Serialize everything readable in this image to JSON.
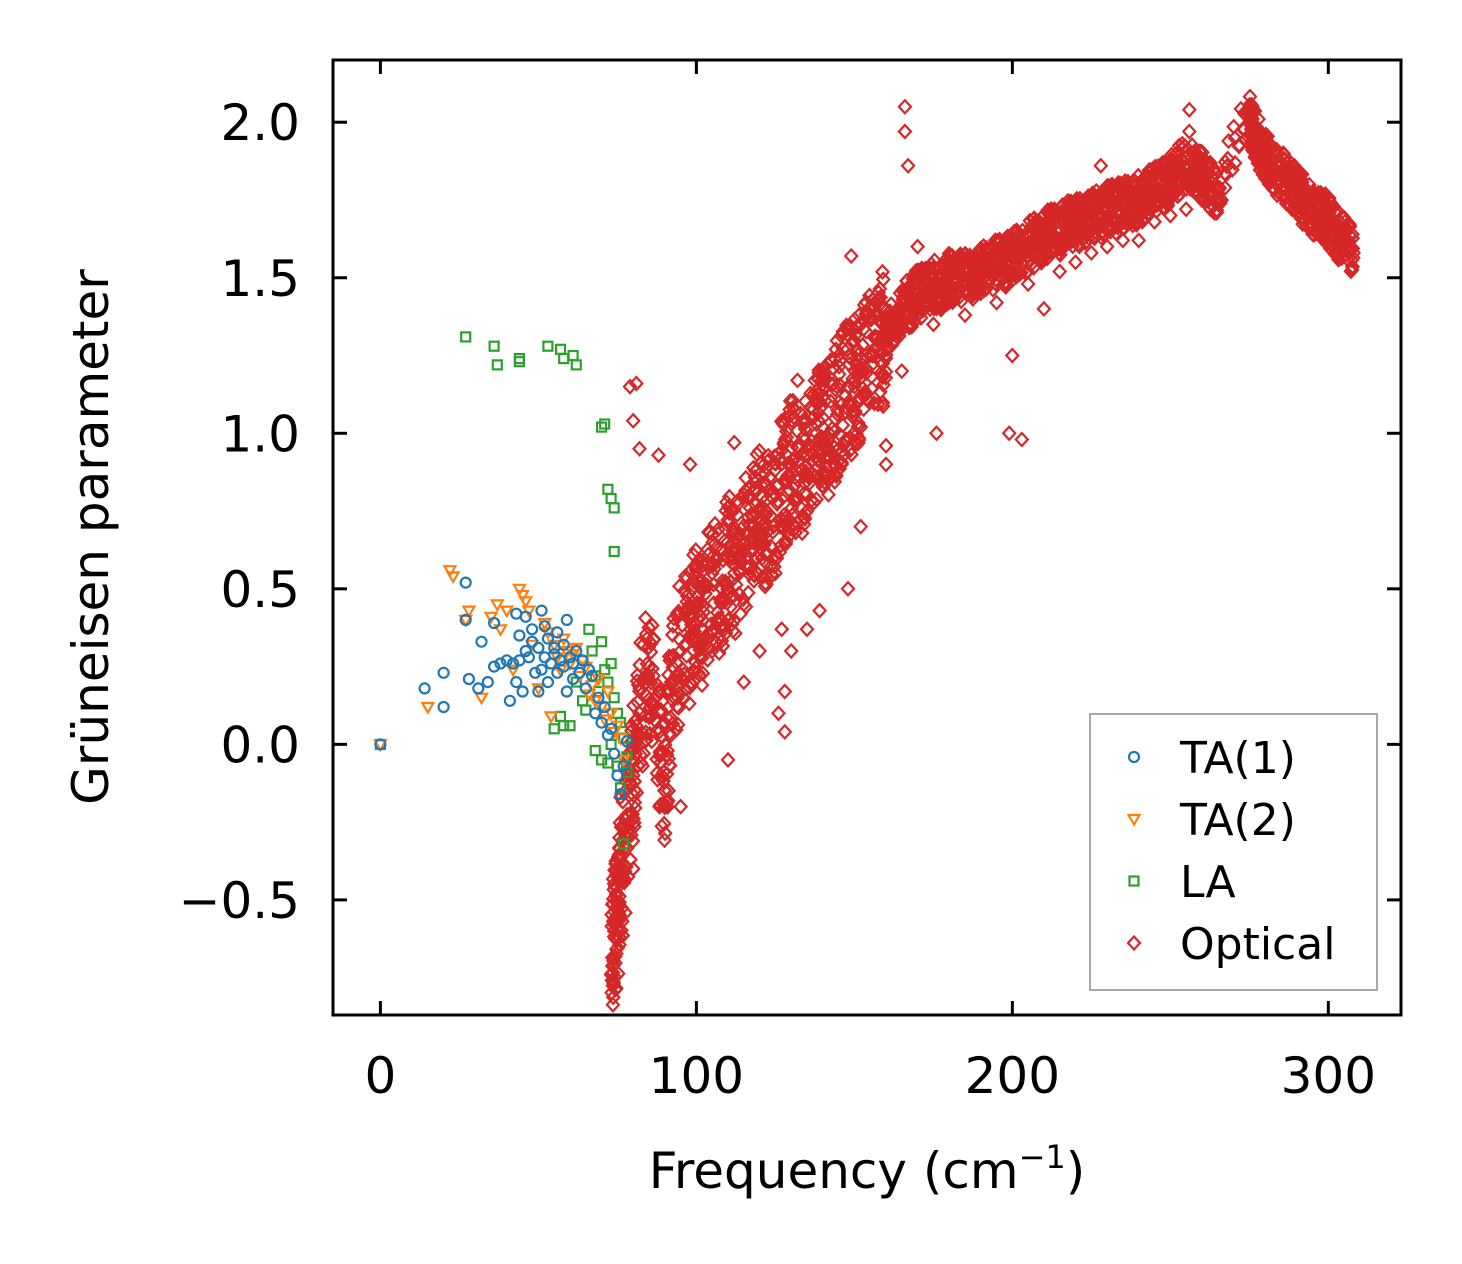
{
  "chart_data": {
    "type": "scatter",
    "title": "",
    "xlabel": "Frequency (cm",
    "xlabel_sup": "−1",
    "xlabel_close": ")",
    "ylabel": "Grüneisen parameter",
    "xlim": [
      -15,
      323
    ],
    "ylim": [
      -0.87,
      2.2
    ],
    "x_ticks": [
      0,
      100,
      200,
      300
    ],
    "x_tick_labels": [
      "0",
      "100",
      "200",
      "300"
    ],
    "y_ticks": [
      -0.5,
      0.0,
      0.5,
      1.0,
      1.5,
      2.0
    ],
    "y_tick_labels": [
      "−0.5",
      "0.0",
      "0.5",
      "1.0",
      "1.5",
      "2.0"
    ],
    "grid": false,
    "legend_position": "bottom-right",
    "series": [
      {
        "name": "TA(1)",
        "marker": "circle",
        "color": "#1f77b4",
        "points": [
          [
            0,
            0
          ],
          [
            14,
            0.18
          ],
          [
            20,
            0.12
          ],
          [
            20,
            0.23
          ],
          [
            27,
            0.4
          ],
          [
            27,
            0.52
          ],
          [
            28,
            0.21
          ],
          [
            31,
            0.18
          ],
          [
            32,
            0.33
          ],
          [
            34,
            0.2
          ],
          [
            36,
            0.25
          ],
          [
            36,
            0.39
          ],
          [
            38,
            0.26
          ],
          [
            40,
            0.27
          ],
          [
            41,
            0.14
          ],
          [
            42,
            0.26
          ],
          [
            43,
            0.42
          ],
          [
            43,
            0.2
          ],
          [
            44,
            0.27
          ],
          [
            44,
            0.35
          ],
          [
            45,
            0.17
          ],
          [
            46,
            0.3
          ],
          [
            46,
            0.41
          ],
          [
            47,
            0.28
          ],
          [
            48,
            0.37
          ],
          [
            48,
            0.33
          ],
          [
            49,
            0.23
          ],
          [
            50,
            0.31
          ],
          [
            50,
            0.17
          ],
          [
            51,
            0.24
          ],
          [
            51,
            0.43
          ],
          [
            52,
            0.28
          ],
          [
            52,
            0.38
          ],
          [
            53,
            0.34
          ],
          [
            53,
            0.2
          ],
          [
            54,
            0.26
          ],
          [
            55,
            0.29
          ],
          [
            55,
            0.31
          ],
          [
            56,
            0.36
          ],
          [
            56,
            0.23
          ],
          [
            57,
            0.27
          ],
          [
            58,
            0.25
          ],
          [
            58,
            0.32
          ],
          [
            59,
            0.4
          ],
          [
            59,
            0.17
          ],
          [
            60,
            0.28
          ],
          [
            61,
            0.26
          ],
          [
            61,
            0.21
          ],
          [
            62,
            0.3
          ],
          [
            63,
            0.23
          ],
          [
            64,
            0.27
          ],
          [
            65,
            0.18
          ],
          [
            66,
            0.24
          ],
          [
            67,
            0.22
          ],
          [
            68,
            0.1
          ],
          [
            69,
            0.15
          ],
          [
            70,
            0.07
          ],
          [
            71,
            0.12
          ],
          [
            72,
            0.03
          ],
          [
            73,
            0.05
          ],
          [
            74,
            -0.03
          ],
          [
            75,
            -0.1
          ],
          [
            76,
            -0.16
          ],
          [
            77,
            -0.07
          ],
          [
            78,
            0.01
          ]
        ]
      },
      {
        "name": "TA(2)",
        "marker": "triangle-down",
        "color": "#ff7f0e",
        "points": [
          [
            0,
            0
          ],
          [
            15,
            0.12
          ],
          [
            22,
            0.56
          ],
          [
            23,
            0.54
          ],
          [
            27,
            0.4
          ],
          [
            28,
            0.43
          ],
          [
            32,
            0.15
          ],
          [
            35,
            0.41
          ],
          [
            37,
            0.45
          ],
          [
            38,
            0.37
          ],
          [
            40,
            0.43
          ],
          [
            42,
            0.24
          ],
          [
            44,
            0.5
          ],
          [
            45,
            0.48
          ],
          [
            46,
            0.46
          ],
          [
            47,
            0.43
          ],
          [
            48,
            0.32
          ],
          [
            50,
            0.18
          ],
          [
            52,
            0.39
          ],
          [
            53,
            0.36
          ],
          [
            54,
            0.09
          ],
          [
            55,
            0.32
          ],
          [
            56,
            0.28
          ],
          [
            57,
            0.24
          ],
          [
            58,
            0.34
          ],
          [
            59,
            0.3
          ],
          [
            60,
            0.26
          ],
          [
            61,
            0.29
          ],
          [
            62,
            0.31
          ],
          [
            63,
            0.22
          ],
          [
            64,
            0.27
          ],
          [
            65,
            0.25
          ],
          [
            66,
            0.16
          ],
          [
            67,
            0.19
          ],
          [
            68,
            0.14
          ],
          [
            69,
            0.21
          ],
          [
            70,
            0.12
          ],
          [
            71,
            0.08
          ],
          [
            72,
            0.17
          ],
          [
            73,
            0.1
          ],
          [
            74,
            0.04
          ],
          [
            75,
            0.06
          ],
          [
            76,
            0.02
          ],
          [
            77,
            -0.05
          ]
        ]
      },
      {
        "name": "LA",
        "marker": "square",
        "color": "#2ca02c",
        "points": [
          [
            0,
            0
          ],
          [
            27,
            1.31
          ],
          [
            36,
            1.28
          ],
          [
            37,
            1.22
          ],
          [
            44,
            1.23
          ],
          [
            44,
            1.24
          ],
          [
            53,
            1.28
          ],
          [
            57,
            1.27
          ],
          [
            58,
            1.24
          ],
          [
            61,
            1.25
          ],
          [
            62,
            1.22
          ],
          [
            70,
            1.02
          ],
          [
            71,
            1.03
          ],
          [
            72,
            0.82
          ],
          [
            73,
            0.79
          ],
          [
            74,
            0.76
          ],
          [
            74,
            0.62
          ],
          [
            55,
            0.05
          ],
          [
            57,
            0.09
          ],
          [
            58,
            0.06
          ],
          [
            60,
            0.06
          ],
          [
            62,
            0.2
          ],
          [
            64,
            0.14
          ],
          [
            65,
            0.11
          ],
          [
            66,
            0.37
          ],
          [
            67,
            0.3
          ],
          [
            68,
            0.22
          ],
          [
            69,
            0.17
          ],
          [
            70,
            0.33
          ],
          [
            71,
            0.24
          ],
          [
            72,
            0.2
          ],
          [
            73,
            0.26
          ],
          [
            74,
            0.15
          ],
          [
            75,
            0.1
          ],
          [
            76,
            0.07
          ],
          [
            77,
            0.02
          ],
          [
            78,
            -0.04
          ],
          [
            68,
            -0.02
          ],
          [
            70,
            -0.05
          ],
          [
            72,
            -0.06
          ],
          [
            73,
            0.0
          ],
          [
            75,
            -0.07
          ],
          [
            76,
            -0.14
          ],
          [
            77,
            -0.32
          ],
          [
            78,
            -0.09
          ]
        ]
      },
      {
        "name": "Optical",
        "marker": "diamond",
        "color": "#d62728",
        "density": "dense",
        "points": [
          [
            73,
            -0.74
          ],
          [
            74,
            -0.6
          ],
          [
            75,
            -0.55
          ],
          [
            76,
            -0.45
          ],
          [
            78,
            -0.3
          ],
          [
            80,
            -0.1
          ],
          [
            82,
            0.1
          ],
          [
            85,
            0.25
          ],
          [
            88,
            0.05
          ],
          [
            90,
            -0.15
          ],
          [
            92,
            0.2
          ],
          [
            95,
            0.3
          ],
          [
            98,
            0.35
          ],
          [
            100,
            0.45
          ],
          [
            102,
            0.4
          ],
          [
            105,
            0.55
          ],
          [
            108,
            0.5
          ],
          [
            110,
            0.6
          ],
          [
            112,
            0.55
          ],
          [
            115,
            0.65
          ],
          [
            118,
            0.7
          ],
          [
            120,
            0.75
          ],
          [
            122,
            0.7
          ],
          [
            125,
            0.8
          ],
          [
            128,
            0.85
          ],
          [
            130,
            0.9
          ],
          [
            132,
            0.85
          ],
          [
            135,
            0.95
          ],
          [
            138,
            1.0
          ],
          [
            140,
            1.05
          ],
          [
            142,
            1.0
          ],
          [
            145,
            1.1
          ],
          [
            148,
            1.15
          ],
          [
            150,
            1.15
          ],
          [
            152,
            1.2
          ],
          [
            155,
            1.25
          ],
          [
            158,
            1.3
          ],
          [
            160,
            1.3
          ],
          [
            162,
            1.35
          ],
          [
            165,
            1.4
          ],
          [
            168,
            1.42
          ],
          [
            170,
            1.45
          ],
          [
            172,
            1.45
          ],
          [
            175,
            1.48
          ],
          [
            178,
            1.47
          ],
          [
            180,
            1.5
          ],
          [
            182,
            1.48
          ],
          [
            185,
            1.52
          ],
          [
            188,
            1.5
          ],
          [
            190,
            1.53
          ],
          [
            192,
            1.52
          ],
          [
            195,
            1.55
          ],
          [
            198,
            1.55
          ],
          [
            200,
            1.57
          ],
          [
            202,
            1.58
          ],
          [
            205,
            1.6
          ],
          [
            208,
            1.62
          ],
          [
            210,
            1.63
          ],
          [
            212,
            1.65
          ],
          [
            215,
            1.65
          ],
          [
            218,
            1.67
          ],
          [
            220,
            1.68
          ],
          [
            222,
            1.68
          ],
          [
            225,
            1.7
          ],
          [
            228,
            1.7
          ],
          [
            230,
            1.72
          ],
          [
            232,
            1.72
          ],
          [
            235,
            1.73
          ],
          [
            238,
            1.74
          ],
          [
            240,
            1.75
          ],
          [
            242,
            1.76
          ],
          [
            245,
            1.78
          ],
          [
            248,
            1.8
          ],
          [
            250,
            1.82
          ],
          [
            252,
            1.84
          ],
          [
            255,
            1.86
          ],
          [
            258,
            1.85
          ],
          [
            260,
            1.83
          ],
          [
            262,
            1.8
          ],
          [
            265,
            1.78
          ],
          [
            275,
            2.03
          ],
          [
            276,
            1.98
          ],
          [
            278,
            1.93
          ],
          [
            280,
            1.9
          ],
          [
            282,
            1.86
          ],
          [
            285,
            1.83
          ],
          [
            288,
            1.8
          ],
          [
            290,
            1.78
          ],
          [
            292,
            1.75
          ],
          [
            295,
            1.72
          ],
          [
            298,
            1.7
          ],
          [
            300,
            1.68
          ],
          [
            302,
            1.65
          ],
          [
            305,
            1.62
          ],
          [
            308,
            1.58
          ],
          [
            166,
            2.05
          ],
          [
            166,
            1.97
          ],
          [
            167,
            1.86
          ],
          [
            256,
            2.04
          ],
          [
            256,
            1.97
          ],
          [
            228,
            1.86
          ],
          [
            132,
            1.17
          ],
          [
            149,
            1.57
          ],
          [
            199,
            1.0
          ],
          [
            203,
            0.98
          ],
          [
            176,
            1.0
          ],
          [
            160,
            0.96
          ],
          [
            79,
            1.15
          ],
          [
            81,
            1.16
          ],
          [
            80,
            1.04
          ],
          [
            82,
            0.95
          ],
          [
            88,
            0.93
          ],
          [
            98,
            0.9
          ],
          [
            112,
            0.97
          ],
          [
            117,
            0.76
          ],
          [
            127,
            0.37
          ],
          [
            130,
            0.3
          ],
          [
            128,
            0.17
          ],
          [
            128,
            0.04
          ],
          [
            126,
            0.1
          ],
          [
            148,
            0.5
          ],
          [
            139,
            0.43
          ],
          [
            135,
            0.37
          ],
          [
            76,
            -0.17
          ],
          [
            80,
            -0.4
          ],
          [
            95,
            -0.2
          ],
          [
            110,
            -0.05
          ],
          [
            115,
            0.2
          ],
          [
            120,
            0.3
          ],
          [
            152,
            0.7
          ],
          [
            160,
            0.9
          ],
          [
            145,
            1.25
          ],
          [
            140,
            1.2
          ],
          [
            170,
            1.6
          ],
          [
            180,
            1.55
          ],
          [
            190,
            1.45
          ],
          [
            200,
            1.25
          ],
          [
            210,
            1.4
          ],
          [
            220,
            1.55
          ],
          [
            230,
            1.6
          ],
          [
            240,
            1.62
          ],
          [
            250,
            1.7
          ],
          [
            260,
            1.75
          ],
          [
            105,
            0.3
          ],
          [
            115,
            0.45
          ],
          [
            125,
            0.55
          ],
          [
            135,
            0.75
          ],
          [
            145,
            0.95
          ],
          [
            155,
            1.1
          ],
          [
            165,
            1.2
          ],
          [
            175,
            1.35
          ],
          [
            185,
            1.38
          ],
          [
            195,
            1.42
          ],
          [
            205,
            1.48
          ],
          [
            215,
            1.52
          ],
          [
            225,
            1.58
          ],
          [
            235,
            1.62
          ],
          [
            245,
            1.68
          ],
          [
            255,
            1.72
          ]
        ]
      }
    ]
  },
  "legend": {
    "items": [
      {
        "label": "TA(1)"
      },
      {
        "label": "TA(2)"
      },
      {
        "label": "LA"
      },
      {
        "label": "Optical"
      }
    ]
  }
}
